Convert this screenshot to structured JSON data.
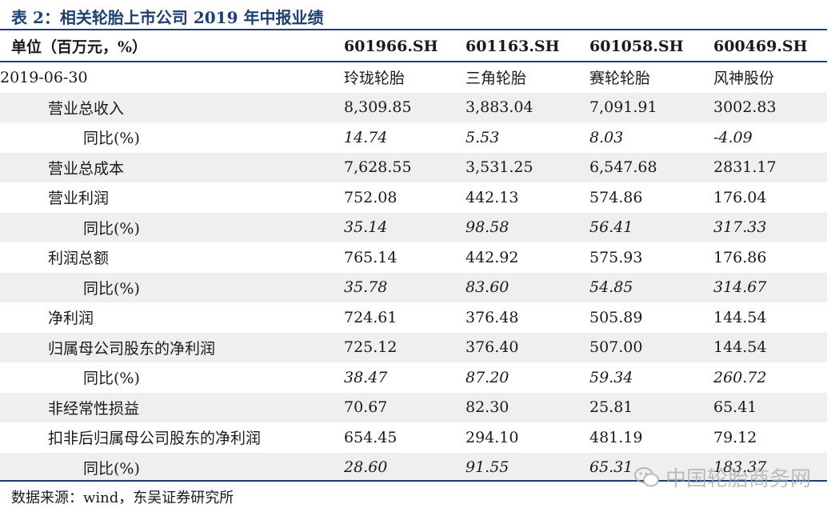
{
  "title": "表 2：相关轮胎上市公司 2019 年中报业绩",
  "header": {
    "unit_label": "单位（百万元，%）",
    "tickers": [
      "601966.SH",
      "601163.SH",
      "601058.SH",
      "600469.SH"
    ]
  },
  "date_row": {
    "label": "2019-06-30",
    "companies": [
      "玲珑轮胎",
      "三角轮胎",
      "赛轮轮胎",
      "风神股份"
    ]
  },
  "rows": [
    {
      "label": "营业总收入",
      "values": [
        "8,309.85",
        "3,883.04",
        "7,091.91",
        "3002.83"
      ]
    },
    {
      "label": "同比(%)",
      "values": [
        "14.74",
        "5.53",
        "8.03",
        "-4.09"
      ]
    },
    {
      "label": "营业总成本",
      "values": [
        "7,628.55",
        "3,531.25",
        "6,547.68",
        "2831.17"
      ]
    },
    {
      "label": "营业利润",
      "values": [
        "752.08",
        "442.13",
        "574.86",
        "176.04"
      ]
    },
    {
      "label": "同比(%)",
      "values": [
        "35.14",
        "98.58",
        "56.41",
        "317.33"
      ]
    },
    {
      "label": "利润总额",
      "values": [
        "765.14",
        "442.92",
        "575.93",
        "176.86"
      ]
    },
    {
      "label": "同比(%)",
      "values": [
        "35.78",
        "83.60",
        "54.85",
        "314.67"
      ]
    },
    {
      "label": "净利润",
      "values": [
        "724.61",
        "376.48",
        "505.89",
        "144.54"
      ]
    },
    {
      "label": "归属母公司股东的净利润",
      "values": [
        "725.12",
        "376.40",
        "507.00",
        "144.54"
      ]
    },
    {
      "label": "同比(%)",
      "values": [
        "38.47",
        "87.20",
        "59.34",
        "260.72"
      ]
    },
    {
      "label": "非经常性损益",
      "values": [
        "70.67",
        "82.30",
        "25.81",
        "65.41"
      ]
    },
    {
      "label": "扣非后归属母公司股东的净利润",
      "values": [
        "654.45",
        "294.10",
        "481.19",
        "79.12"
      ]
    },
    {
      "label": "同比(%)",
      "values": [
        "28.60",
        "91.55",
        "65.31",
        "183.37"
      ]
    }
  ],
  "source": "数据来源：wind，东吴证券研究所",
  "watermark": {
    "text": "中国轮胎商务网",
    "icon": "wechat-icon"
  },
  "colors": {
    "accent": "#1d3f72",
    "row_shade": "#efefef"
  }
}
